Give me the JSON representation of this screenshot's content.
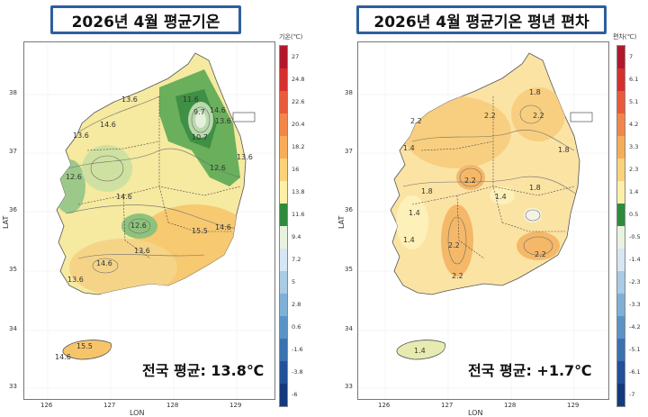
{
  "left": {
    "title": "2026년 4월 평균기온",
    "average": "전국 평균: 13.8℃",
    "legend_title": "기온(℃)",
    "legend_labels": [
      "27",
      "24.8",
      "22.6",
      "20.4",
      "18.2",
      "16",
      "13.8",
      "11.6",
      "9.4",
      "7.2",
      "5",
      "2.8",
      "0.6",
      "-1.6",
      "-3.8",
      "-6"
    ],
    "legend_colors": [
      "#b2182b",
      "#d6302e",
      "#e85a3a",
      "#f2854a",
      "#f7ad58",
      "#fbd27a",
      "#fdf0a6",
      "#2e8b3e",
      "#e8f3df",
      "#d6e6f3",
      "#a9cbe3",
      "#7fb0d6",
      "#5a93c6",
      "#3a72b0",
      "#22519a",
      "#143a7e"
    ],
    "contour_labels": [
      "13.6",
      "14.6",
      "13.6",
      "11.6",
      "9.7",
      "14.6",
      "10.7",
      "13.6",
      "12.6",
      "12.6",
      "13.6",
      "14.6",
      "12.6",
      "13.6",
      "15.5",
      "14.6",
      "14.6",
      "13.6",
      "15.5",
      "14.6"
    ],
    "x_ticks": [
      "126",
      "127",
      "128",
      "129"
    ],
    "y_ticks": [
      "38",
      "37",
      "36",
      "35",
      "34",
      "33"
    ],
    "x_axis": "LON",
    "y_axis": "LAT"
  },
  "right": {
    "title": "2026년 4월 평균기온 평년 편차",
    "average": "전국 평균: +1.7℃",
    "legend_title": "편차(℃)",
    "legend_labels": [
      "7",
      "6.1",
      "5.1",
      "4.2",
      "3.3",
      "2.3",
      "1.4",
      "0.5",
      "-0.5",
      "-1.4",
      "-2.3",
      "-3.3",
      "-4.2",
      "-5.1",
      "-6.1",
      "-7"
    ],
    "legend_colors": [
      "#b2182b",
      "#d6302e",
      "#e85a3a",
      "#f2854a",
      "#f7ad58",
      "#fbd27a",
      "#fdf0a6",
      "#2e8b3e",
      "#e8f3df",
      "#d6e6f3",
      "#a9cbe3",
      "#7fb0d6",
      "#5a93c6",
      "#3a72b0",
      "#22519a",
      "#143a7e"
    ],
    "contour_labels": [
      "1.8",
      "2.2",
      "2.2",
      "2.2",
      "1.4",
      "1.8",
      "2.2",
      "1.8",
      "1.4",
      "1.8",
      "1.4",
      "2.2",
      "2.2",
      "1.4",
      "2.2",
      "1.4"
    ],
    "x_ticks": [
      "126",
      "127",
      "128",
      "129"
    ],
    "y_ticks": [
      "38",
      "37",
      "36",
      "35",
      "34",
      "33"
    ],
    "x_axis": "LON",
    "y_axis": "LAT"
  }
}
